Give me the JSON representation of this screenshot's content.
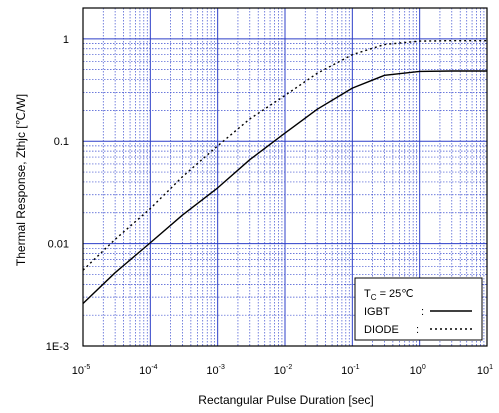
{
  "chart_data": {
    "type": "line",
    "xscale": "log",
    "yscale": "log",
    "xlim": [
      1e-05,
      10
    ],
    "ylim": [
      0.001,
      2
    ],
    "grid": true,
    "xlabel": "Rectangular Pulse Duration [sec]",
    "ylabel": "Thermal Response, Zthjc [℃/W]",
    "x_ticks": [
      {
        "base": "10",
        "exp": "-5"
      },
      {
        "base": "10",
        "exp": "-4"
      },
      {
        "base": "10",
        "exp": "-3"
      },
      {
        "base": "10",
        "exp": "-2"
      },
      {
        "base": "10",
        "exp": "-1"
      },
      {
        "base": "10",
        "exp": "0"
      },
      {
        "base": "10",
        "exp": "1"
      }
    ],
    "y_ticks": [
      "1E-3",
      "0.01",
      "0.1",
      "1"
    ],
    "legend": {
      "position": "bottom-right",
      "condition_prefix": "T",
      "condition_sub": "C",
      "condition_value": " = 25℃",
      "entries": [
        {
          "label": "IGBT",
          "sep": ":",
          "style": "solid"
        },
        {
          "label": "DIODE",
          "sep": ":",
          "style": "dotted"
        }
      ]
    },
    "series": [
      {
        "name": "IGBT",
        "style": "solid",
        "x": [
          1e-05,
          3e-05,
          0.0001,
          0.0003,
          0.001,
          0.003,
          0.01,
          0.03,
          0.1,
          0.3,
          1,
          3,
          10
        ],
        "y": [
          0.0026,
          0.0052,
          0.0102,
          0.019,
          0.035,
          0.066,
          0.12,
          0.205,
          0.33,
          0.44,
          0.48,
          0.485,
          0.485
        ]
      },
      {
        "name": "DIODE",
        "style": "dotted",
        "x": [
          1e-05,
          3e-05,
          0.0001,
          0.0003,
          0.001,
          0.003,
          0.01,
          0.03,
          0.1,
          0.3,
          1,
          3,
          10
        ],
        "y": [
          0.0055,
          0.011,
          0.022,
          0.045,
          0.09,
          0.165,
          0.28,
          0.46,
          0.7,
          0.88,
          0.95,
          0.96,
          0.96
        ]
      }
    ]
  }
}
